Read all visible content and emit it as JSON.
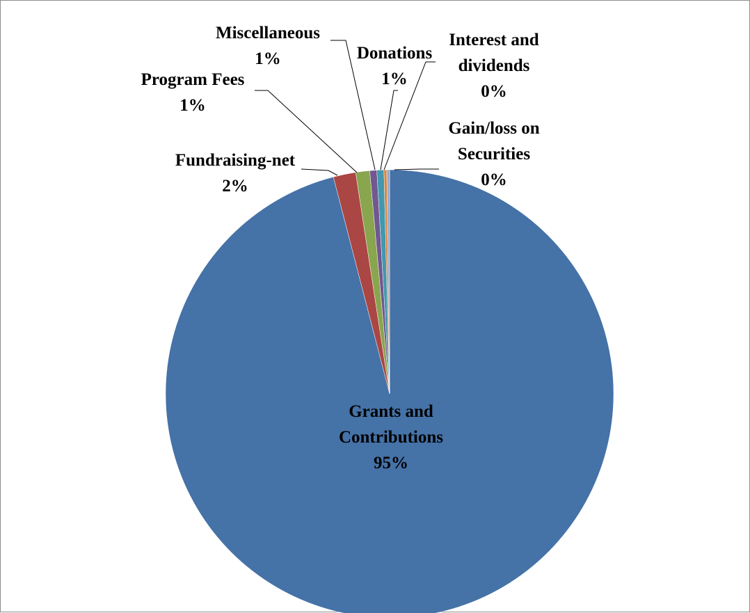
{
  "chart_data": {
    "type": "pie",
    "title": "",
    "start_angle_deg": 0,
    "direction": "clockwise",
    "slices": [
      {
        "label": "Grants and Contributions",
        "value": 95,
        "display": "95%",
        "color": "#4572a7"
      },
      {
        "label": "Fundraising-net",
        "value": 1.6,
        "display": "2%",
        "color": "#aa4643"
      },
      {
        "label": "Program Fees",
        "value": 1.0,
        "display": "1%",
        "color": "#89a54e"
      },
      {
        "label": "Miscellaneous",
        "value": 0.5,
        "display": "1%",
        "color": "#71588f"
      },
      {
        "label": "Donations",
        "value": 0.5,
        "display": "1%",
        "color": "#4198af"
      },
      {
        "label": "Interest and dividends",
        "value": 0.2,
        "display": "0%",
        "color": "#db843d"
      },
      {
        "label": "Gain/loss on Securities",
        "value": 0.2,
        "display": "0%",
        "color": "#93a9cf"
      }
    ],
    "legend": "none",
    "data_labels": "category name and percentage"
  }
}
